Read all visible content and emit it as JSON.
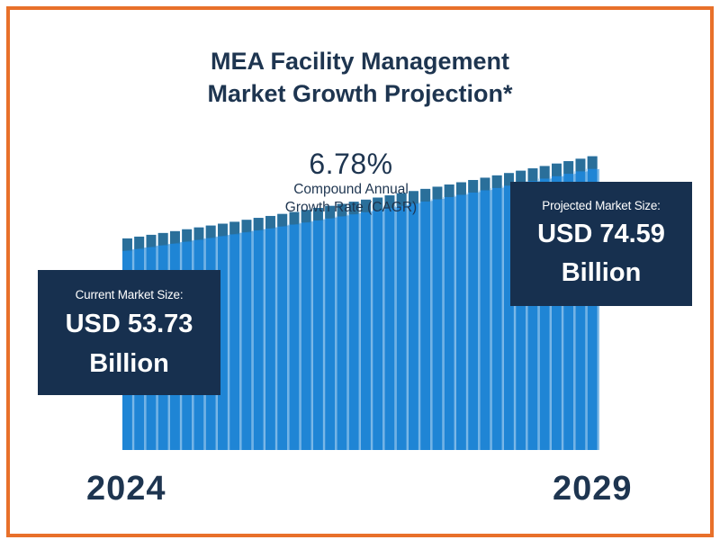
{
  "title_line1": "MEA Facility Management",
  "title_line2": "Market Growth Projection*",
  "cagr": {
    "value": "6.78%",
    "label_line1": "Compound Annual",
    "label_line2": "Growth Rate (CAGR)"
  },
  "current": {
    "label": "Current Market Size:",
    "value_line1": "USD 53.73",
    "value_line2": "Billion"
  },
  "projected": {
    "label": "Projected Market Size:",
    "value_line1": "USD 74.59",
    "value_line2": "Billion"
  },
  "years": {
    "start": "2024",
    "end": "2029"
  },
  "colors": {
    "border": "#e8702a",
    "navy": "#17304f",
    "bar": "#1f85d6",
    "bar_top": "#2a6f9a",
    "text": "#1e3550"
  },
  "chart_data": {
    "type": "area",
    "title": "MEA Facility Management Market Growth Projection*",
    "x": [
      2024,
      2029
    ],
    "xlabels": [
      "2024",
      "2029"
    ],
    "series": [
      {
        "name": "Market Size (USD Billion)",
        "values": [
          53.73,
          74.59
        ]
      }
    ],
    "cagr_percent": 6.78,
    "ylim": [
      0,
      80
    ],
    "annotations": [
      "Current Market Size: USD 53.73 Billion",
      "Projected Market Size: USD 74.59 Billion"
    ]
  }
}
